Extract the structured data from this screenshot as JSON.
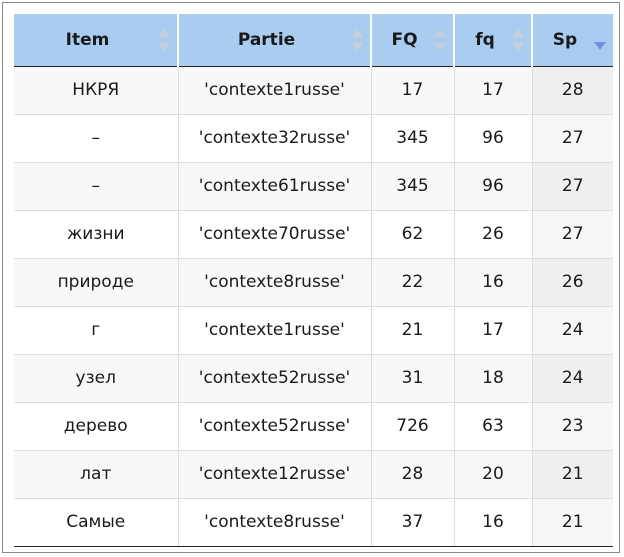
{
  "table": {
    "columns": [
      {
        "label": "Item"
      },
      {
        "label": "Partie"
      },
      {
        "label": "FQ"
      },
      {
        "label": "fq"
      },
      {
        "label": "Sp"
      }
    ],
    "sorted_column": "Sp",
    "sort_direction": "descending",
    "rows": [
      {
        "item": "НКРЯ",
        "partie": "'contexte1russe'",
        "FQ": "17",
        "fq": "17",
        "Sp": "28"
      },
      {
        "item": "–",
        "partie": "'contexte32russe'",
        "FQ": "345",
        "fq": "96",
        "Sp": "27"
      },
      {
        "item": "–",
        "partie": "'contexte61russe'",
        "FQ": "345",
        "fq": "96",
        "Sp": "27"
      },
      {
        "item": "жизни",
        "partie": "'contexte70russe'",
        "FQ": "62",
        "fq": "26",
        "Sp": "27"
      },
      {
        "item": "природе",
        "partie": "'contexte8russe'",
        "FQ": "22",
        "fq": "16",
        "Sp": "26"
      },
      {
        "item": "г",
        "partie": "'contexte1russe'",
        "FQ": "21",
        "fq": "17",
        "Sp": "24"
      },
      {
        "item": "узел",
        "partie": "'contexte52russe'",
        "FQ": "31",
        "fq": "18",
        "Sp": "24"
      },
      {
        "item": "дерево",
        "partie": "'contexte52russe'",
        "FQ": "726",
        "fq": "63",
        "Sp": "23"
      },
      {
        "item": "лат",
        "partie": "'contexte12russe'",
        "FQ": "28",
        "fq": "20",
        "Sp": "21"
      },
      {
        "item": "Самые",
        "partie": "'contexte8russe'",
        "FQ": "37",
        "fq": "16",
        "Sp": "21"
      }
    ]
  }
}
